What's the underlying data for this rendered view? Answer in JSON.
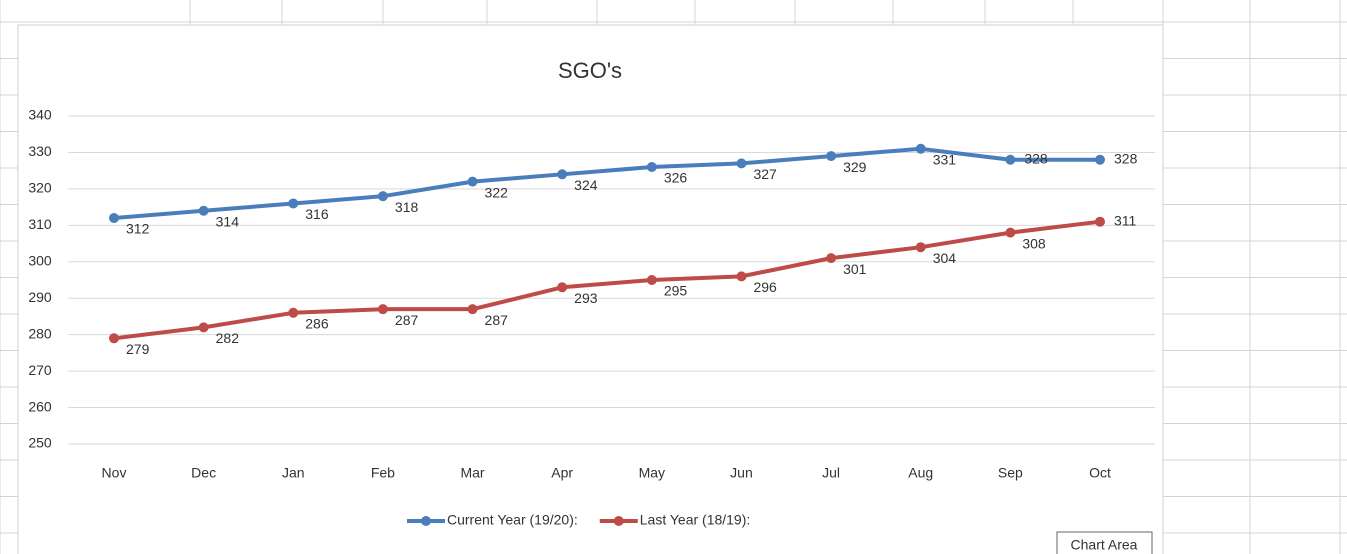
{
  "chart_data": {
    "type": "line",
    "title": "SGO's",
    "categories": [
      "Nov",
      "Dec",
      "Jan",
      "Feb",
      "Mar",
      "Apr",
      "May",
      "Jun",
      "Jul",
      "Aug",
      "Sep",
      "Oct"
    ],
    "series": [
      {
        "name": "Current Year (19/20):",
        "color": "#4a7ebb",
        "values": [
          312,
          314,
          316,
          318,
          322,
          324,
          326,
          327,
          329,
          331,
          328,
          328
        ]
      },
      {
        "name": "Last Year (18/19):",
        "color": "#be4b48",
        "values": [
          279,
          282,
          286,
          287,
          287,
          293,
          295,
          296,
          301,
          304,
          308,
          311
        ]
      }
    ],
    "ylim": [
      250,
      340
    ],
    "yticks": [
      250,
      260,
      270,
      280,
      290,
      300,
      310,
      320,
      330,
      340
    ],
    "grid": true,
    "legend": "bottom",
    "data_labels": true
  },
  "tooltip": "Chart Area"
}
